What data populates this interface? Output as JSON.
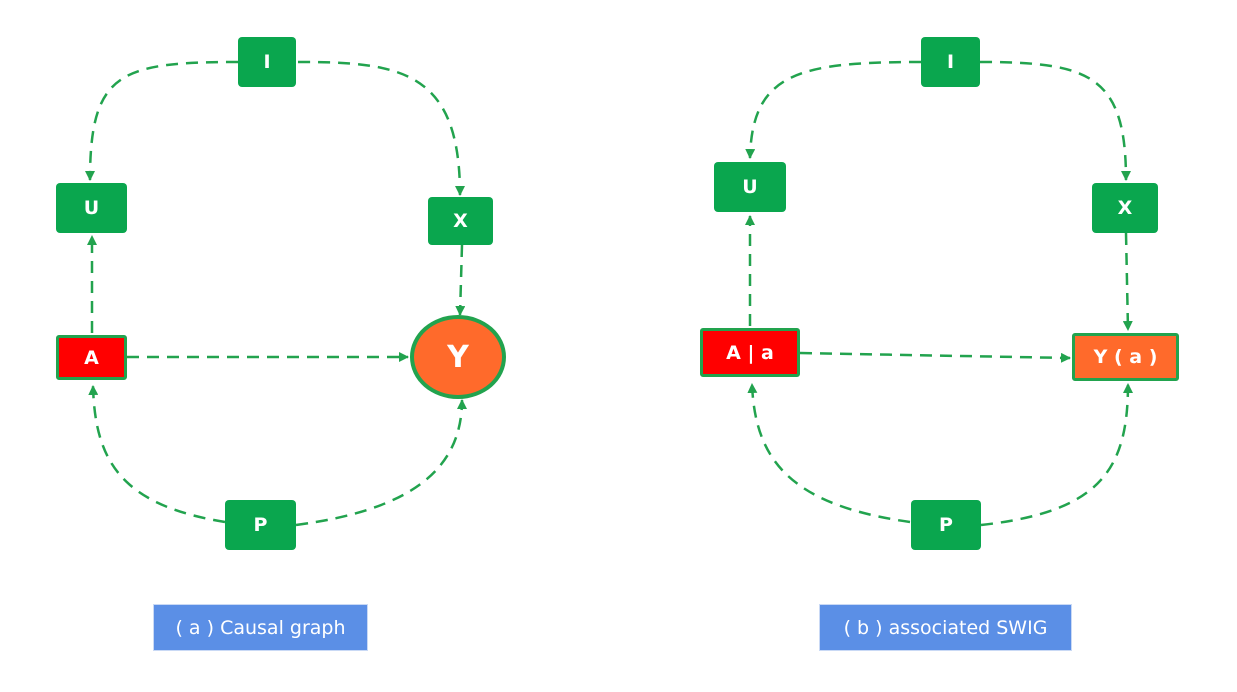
{
  "colors": {
    "edge": "#22a34e",
    "node": "#0aa64e",
    "treatment": "#ff0000",
    "outcome": "#ff6a2b",
    "caption": "#5b8fe6"
  },
  "left": {
    "nodes": {
      "I": "I",
      "U": "U",
      "X": "X",
      "A": "A",
      "Y": "Y",
      "P": "P"
    },
    "caption": "( a ) Causal graph"
  },
  "right": {
    "nodes": {
      "I": "I",
      "U": "U",
      "X": "X",
      "A": "A | a",
      "Y": "Y ( a )",
      "P": "P"
    },
    "caption": "( b ) associated SWIG"
  }
}
